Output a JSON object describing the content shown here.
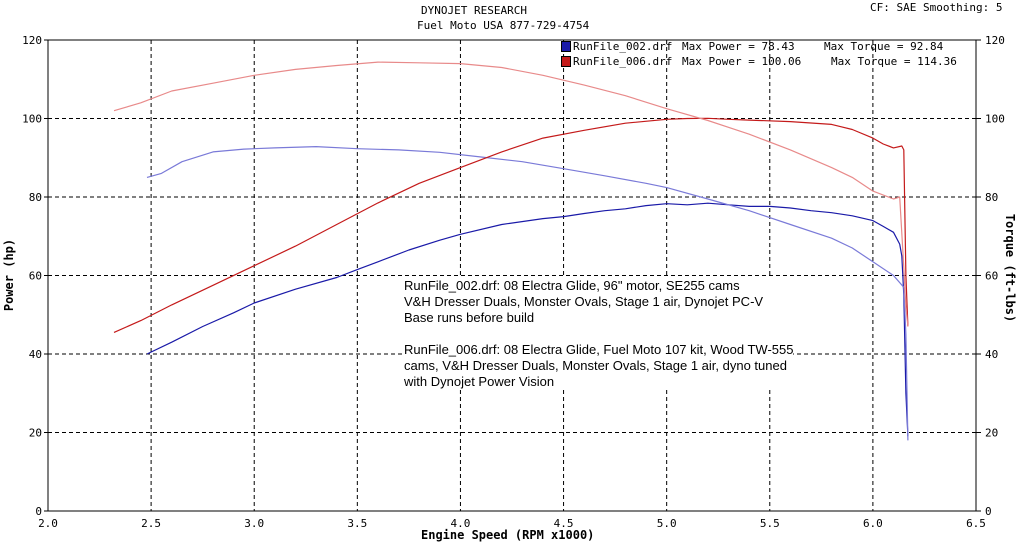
{
  "header": {
    "company": "DYNOJET RESEARCH",
    "shop": "Fuel Moto USA 877-729-4754",
    "settings": "CF: SAE  Smoothing: 5"
  },
  "legend": [
    {
      "file": "RunFile_002.drf",
      "max_power_label": "Max Power = 78.43",
      "max_torque_label": "Max Torque = 92.84",
      "color": "#1a1aa8"
    },
    {
      "file": "RunFile_006.drf",
      "max_power_label": "Max Power = 100.06",
      "max_torque_label": "Max Torque = 114.36",
      "color": "#c41a1a"
    }
  ],
  "notes": {
    "run1": [
      "RunFile_002.drf: 08 Electra Glide, 96\" motor, SE255 cams",
      "V&H Dresser Duals, Monster Ovals, Stage 1 air, Dynojet PC-V",
      "Base runs before build"
    ],
    "run2": [
      "RunFile_006.drf: 08 Electra Glide, Fuel Moto 107 kit, Wood TW-555",
      "cams, V&H Dresser Duals, Monster Ovals, Stage 1 air, dyno tuned",
      "with Dynojet Power Vision"
    ]
  },
  "chart_data": {
    "type": "line",
    "xlabel": "Engine Speed (RPM x1000)",
    "ylabel": "Power (hp)",
    "y2label": "Torque (ft-lbs)",
    "xlim": [
      2.0,
      6.5
    ],
    "ylim": [
      0,
      120
    ],
    "y2lim": [
      0,
      120
    ],
    "x_ticks": [
      "2.0",
      "2.5",
      "3.0",
      "3.5",
      "4.0",
      "4.5",
      "5.0",
      "5.5",
      "6.0",
      "6.5"
    ],
    "y_ticks": [
      "0",
      "20",
      "40",
      "60",
      "80",
      "100",
      "120"
    ],
    "y2_ticks": [
      "0",
      "20",
      "40",
      "60",
      "80",
      "100",
      "120"
    ],
    "grid": true,
    "series": [
      {
        "name": "RunFile_002.drf",
        "measure": "Power",
        "color": "#1a1aa8",
        "x": [
          2.48,
          2.6,
          2.75,
          2.9,
          3.0,
          3.2,
          3.4,
          3.5,
          3.6,
          3.75,
          3.9,
          4.0,
          4.2,
          4.4,
          4.5,
          4.6,
          4.7,
          4.8,
          4.9,
          5.0,
          5.1,
          5.2,
          5.3,
          5.4,
          5.5,
          5.6,
          5.7,
          5.8,
          5.9,
          6.0,
          6.05,
          6.1,
          6.13,
          6.14,
          6.15,
          6.16,
          6.17
        ],
        "y": [
          40,
          43,
          47,
          50.5,
          53,
          56.5,
          59.5,
          61.5,
          63.5,
          66.5,
          69,
          70.5,
          73,
          74.5,
          75,
          75.8,
          76.5,
          77,
          77.8,
          78.3,
          78,
          78.43,
          78,
          77.6,
          77.6,
          77.2,
          76.5,
          76,
          75.2,
          74,
          72.5,
          71,
          68,
          65,
          55,
          30,
          19
        ]
      },
      {
        "name": "RunFile_002.drf",
        "measure": "Torque",
        "color": "#7a7ad8",
        "x": [
          2.48,
          2.55,
          2.65,
          2.8,
          2.95,
          3.1,
          3.3,
          3.5,
          3.7,
          3.9,
          4.1,
          4.3,
          4.5,
          4.7,
          4.9,
          5.0,
          5.2,
          5.4,
          5.6,
          5.8,
          5.9,
          6.0,
          6.1,
          6.15,
          6.16,
          6.17
        ],
        "y": [
          85,
          86,
          89,
          91.5,
          92.2,
          92.5,
          92.84,
          92.3,
          92,
          91.4,
          90.2,
          89,
          87.2,
          85.4,
          83.5,
          82.4,
          79.5,
          76.5,
          73,
          69.5,
          67,
          63.5,
          60,
          57,
          45,
          18
        ]
      },
      {
        "name": "RunFile_006.drf",
        "measure": "Power",
        "color": "#c41a1a",
        "x": [
          2.32,
          2.45,
          2.6,
          2.8,
          3.0,
          3.2,
          3.4,
          3.6,
          3.8,
          4.0,
          4.2,
          4.4,
          4.6,
          4.8,
          5.0,
          5.1,
          5.2,
          5.3,
          5.4,
          5.6,
          5.8,
          5.9,
          6.0,
          6.05,
          6.1,
          6.14,
          6.15,
          6.16,
          6.17
        ],
        "y": [
          45.5,
          48.5,
          52.5,
          57.5,
          62.5,
          67.5,
          73,
          78.5,
          83.5,
          87.5,
          91.5,
          95,
          97,
          98.8,
          99.8,
          100,
          100.06,
          99.8,
          99.6,
          99.2,
          98.5,
          97.2,
          95,
          93.5,
          92.5,
          93,
          92,
          60,
          47
        ]
      },
      {
        "name": "RunFile_006.drf",
        "measure": "Torque",
        "color": "#e88a8a",
        "x": [
          2.32,
          2.45,
          2.6,
          2.8,
          3.0,
          3.2,
          3.4,
          3.6,
          3.8,
          4.0,
          4.2,
          4.4,
          4.6,
          4.8,
          5.0,
          5.2,
          5.4,
          5.6,
          5.8,
          5.9,
          6.0,
          6.1,
          6.13,
          6.15,
          6.16,
          6.17
        ],
        "y": [
          102,
          104,
          107,
          109,
          111,
          112.5,
          113.5,
          114.36,
          114.2,
          114,
          113,
          111,
          108.5,
          105.8,
          102.5,
          99.5,
          96,
          92,
          87.5,
          85,
          81.5,
          79.5,
          80,
          62,
          52,
          47
        ]
      }
    ]
  }
}
